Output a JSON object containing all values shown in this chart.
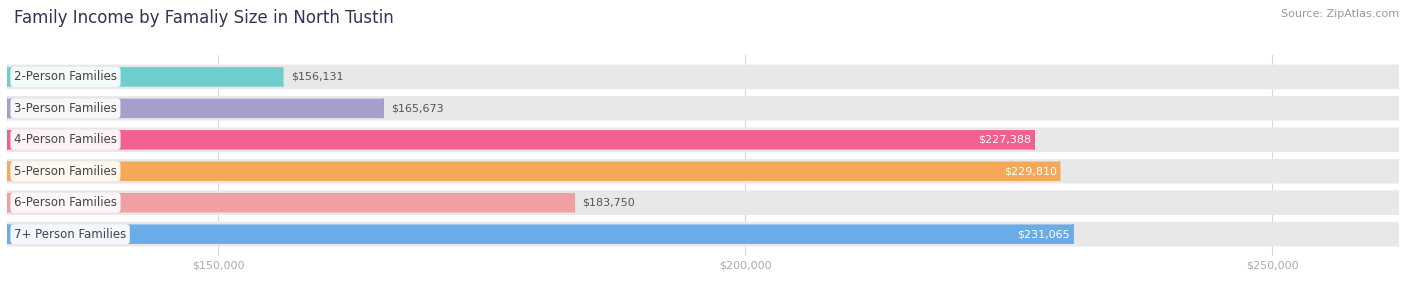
{
  "title": "Family Income by Famaliy Size in North Tustin",
  "source": "Source: ZipAtlas.com",
  "categories": [
    "2-Person Families",
    "3-Person Families",
    "4-Person Families",
    "5-Person Families",
    "6-Person Families",
    "7+ Person Families"
  ],
  "values": [
    156131,
    165673,
    227388,
    229810,
    183750,
    231065
  ],
  "bar_colors": [
    "#6ecece",
    "#a89ecc",
    "#f06090",
    "#f5a857",
    "#f0a0a0",
    "#6aabe8"
  ],
  "label_colors": [
    "#555555",
    "#555555",
    "#ffffff",
    "#ffffff",
    "#555555",
    "#ffffff"
  ],
  "x_min": 130000,
  "x_max": 262000,
  "x_ticks": [
    150000,
    200000,
    250000
  ],
  "x_tick_labels": [
    "$150,000",
    "$200,000",
    "$250,000"
  ],
  "background_color": "#ffffff",
  "title_fontsize": 12,
  "source_fontsize": 8,
  "bar_label_fontsize": 8,
  "category_fontsize": 8.5
}
